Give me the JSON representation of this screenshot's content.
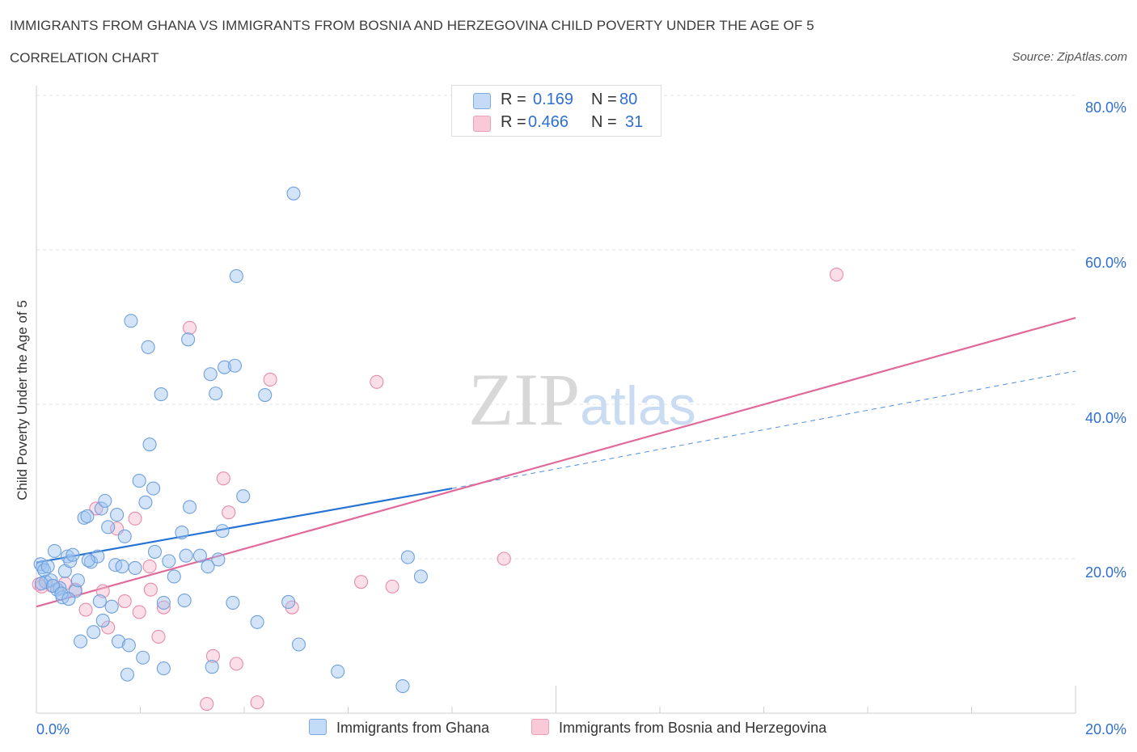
{
  "chart_data": {
    "type": "scatter",
    "title": "IMMIGRANTS FROM GHANA VS IMMIGRANTS FROM BOSNIA AND HERZEGOVINA CHILD POVERTY UNDER THE AGE OF 5",
    "subtitle": "CORRELATION CHART",
    "source": "Source: ZipAtlas.com",
    "ylabel": "Child Poverty Under the Age of 5",
    "xlim": [
      0,
      20
    ],
    "ylim": [
      0,
      80
    ],
    "x_tick_labels": [
      "0.0%",
      "20.0%"
    ],
    "y_tick_labels": [
      "80.0%",
      "60.0%",
      "40.0%",
      "20.0%"
    ],
    "y_ticks": [
      80,
      60,
      40,
      20
    ],
    "watermark": "ZIPatlas",
    "legend_top": [
      {
        "r_label": "R =",
        "r_value": "0.169",
        "n_label": "N =",
        "n_value": "80"
      },
      {
        "r_label": "R =",
        "r_value": "0.466",
        "n_label": "N =",
        "n_value": "31"
      }
    ],
    "series": [
      {
        "name": "Immigrants from Ghana",
        "color": "#9ec3ef",
        "stroke": "#6fa0dc",
        "line_color": "#2672d4",
        "trend": {
          "x0": 0,
          "y0": 19.5,
          "x1": 8,
          "y1": 29.1,
          "dash_to_x": 20,
          "dash_to_y": 44.3
        },
        "points": [
          [
            0.08,
            19.3
          ],
          [
            0.12,
            18.9
          ],
          [
            0.15,
            18.5
          ],
          [
            0.18,
            17.0
          ],
          [
            0.22,
            19.0
          ],
          [
            0.28,
            17.2
          ],
          [
            0.35,
            21.0
          ],
          [
            0.4,
            16.0
          ],
          [
            0.45,
            16.2
          ],
          [
            0.5,
            15.0
          ],
          [
            0.55,
            18.4
          ],
          [
            0.6,
            20.3
          ],
          [
            0.65,
            19.7
          ],
          [
            0.7,
            20.5
          ],
          [
            0.75,
            15.8
          ],
          [
            0.8,
            17.2
          ],
          [
            0.85,
            9.3
          ],
          [
            0.92,
            25.3
          ],
          [
            0.98,
            25.5
          ],
          [
            1.05,
            19.6
          ],
          [
            1.1,
            10.5
          ],
          [
            1.18,
            20.3
          ],
          [
            1.22,
            14.5
          ],
          [
            1.25,
            26.5
          ],
          [
            1.28,
            12.0
          ],
          [
            1.32,
            27.5
          ],
          [
            1.38,
            24.1
          ],
          [
            1.45,
            13.8
          ],
          [
            1.52,
            19.2
          ],
          [
            1.55,
            25.7
          ],
          [
            1.58,
            9.3
          ],
          [
            1.65,
            19.0
          ],
          [
            1.7,
            22.9
          ],
          [
            1.75,
            5.0
          ],
          [
            1.78,
            8.8
          ],
          [
            1.82,
            50.8
          ],
          [
            1.9,
            18.8
          ],
          [
            1.98,
            30.1
          ],
          [
            2.05,
            7.2
          ],
          [
            2.1,
            27.3
          ],
          [
            2.15,
            47.4
          ],
          [
            2.18,
            34.8
          ],
          [
            2.25,
            29.1
          ],
          [
            2.28,
            20.9
          ],
          [
            2.4,
            41.3
          ],
          [
            2.45,
            14.3
          ],
          [
            2.45,
            5.8
          ],
          [
            2.55,
            19.7
          ],
          [
            2.65,
            17.7
          ],
          [
            2.8,
            23.4
          ],
          [
            2.85,
            14.6
          ],
          [
            2.88,
            20.4
          ],
          [
            2.92,
            48.4
          ],
          [
            2.95,
            26.7
          ],
          [
            3.15,
            20.4
          ],
          [
            3.3,
            19.0
          ],
          [
            3.35,
            43.9
          ],
          [
            3.38,
            6.0
          ],
          [
            3.45,
            41.4
          ],
          [
            3.5,
            19.9
          ],
          [
            3.58,
            23.6
          ],
          [
            3.62,
            44.8
          ],
          [
            3.78,
            14.3
          ],
          [
            3.82,
            45.0
          ],
          [
            3.85,
            56.6
          ],
          [
            3.98,
            28.1
          ],
          [
            4.25,
            11.8
          ],
          [
            4.4,
            41.2
          ],
          [
            4.85,
            14.4
          ],
          [
            4.95,
            67.3
          ],
          [
            5.05,
            8.9
          ],
          [
            5.8,
            5.4
          ],
          [
            7.05,
            3.5
          ],
          [
            7.15,
            20.2
          ],
          [
            7.4,
            17.7
          ],
          [
            0.1,
            16.8
          ],
          [
            0.32,
            16.5
          ],
          [
            0.48,
            15.5
          ],
          [
            0.62,
            14.8
          ],
          [
            1.0,
            19.8
          ]
        ]
      },
      {
        "name": "Immigrants from Bosnia and Herzegovina",
        "color": "#f5b8cc",
        "stroke": "#e88aaa",
        "line_color": "#e0699a",
        "trend": {
          "x0": 0,
          "y0": 13.8,
          "x1": 20,
          "y1": 51.2
        },
        "points": [
          [
            0.05,
            16.7
          ],
          [
            0.1,
            16.4
          ],
          [
            0.55,
            16.8
          ],
          [
            0.75,
            16.0
          ],
          [
            0.95,
            13.4
          ],
          [
            1.15,
            26.5
          ],
          [
            1.28,
            15.8
          ],
          [
            1.38,
            11.1
          ],
          [
            1.55,
            23.9
          ],
          [
            1.7,
            14.5
          ],
          [
            1.9,
            25.2
          ],
          [
            1.98,
            13.1
          ],
          [
            2.18,
            19.0
          ],
          [
            2.35,
            9.9
          ],
          [
            2.45,
            13.7
          ],
          [
            2.95,
            49.9
          ],
          [
            3.28,
            1.2
          ],
          [
            3.4,
            7.4
          ],
          [
            3.6,
            30.4
          ],
          [
            3.7,
            26.0
          ],
          [
            3.85,
            6.4
          ],
          [
            4.25,
            1.4
          ],
          [
            4.5,
            43.2
          ],
          [
            4.92,
            13.7
          ],
          [
            6.25,
            17.0
          ],
          [
            6.55,
            42.9
          ],
          [
            6.85,
            16.4
          ],
          [
            9.0,
            20.0
          ],
          [
            15.4,
            56.8
          ],
          [
            2.2,
            16.0
          ],
          [
            0.3,
            16.5
          ]
        ]
      }
    ]
  }
}
